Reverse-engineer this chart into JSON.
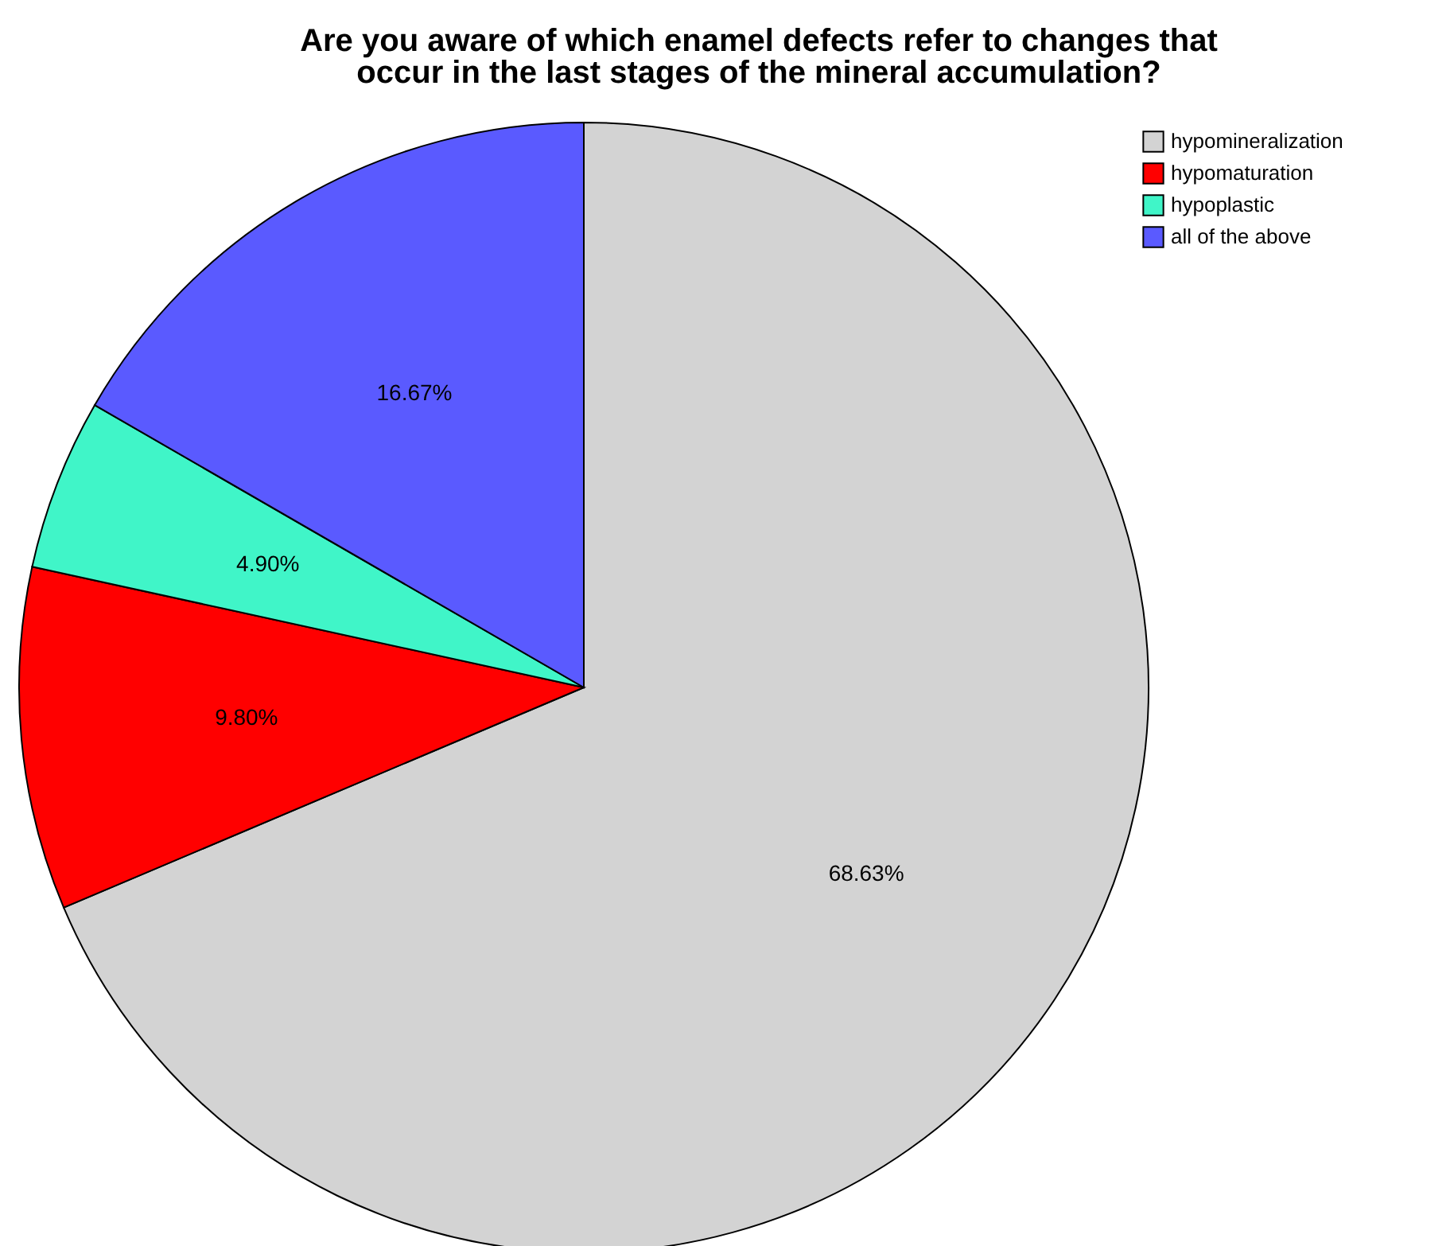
{
  "chart_data": {
    "type": "pie",
    "title": [
      "Are you aware of which enamel defects refer to changes that",
      "occur in the last stages of the mineral accumulation?"
    ],
    "categories": [
      "hypomineralization",
      "hypomaturation",
      "hypoplastic",
      "all of the above"
    ],
    "values": [
      68.63,
      9.8,
      4.9,
      16.67
    ],
    "colors": [
      "#d3d3d3",
      "#ff0000",
      "#40f5c8",
      "#5a5aff"
    ],
    "value_labels": [
      "68.63%",
      "9.80%",
      "4.90%",
      "16.67%"
    ],
    "legend": "top right"
  }
}
